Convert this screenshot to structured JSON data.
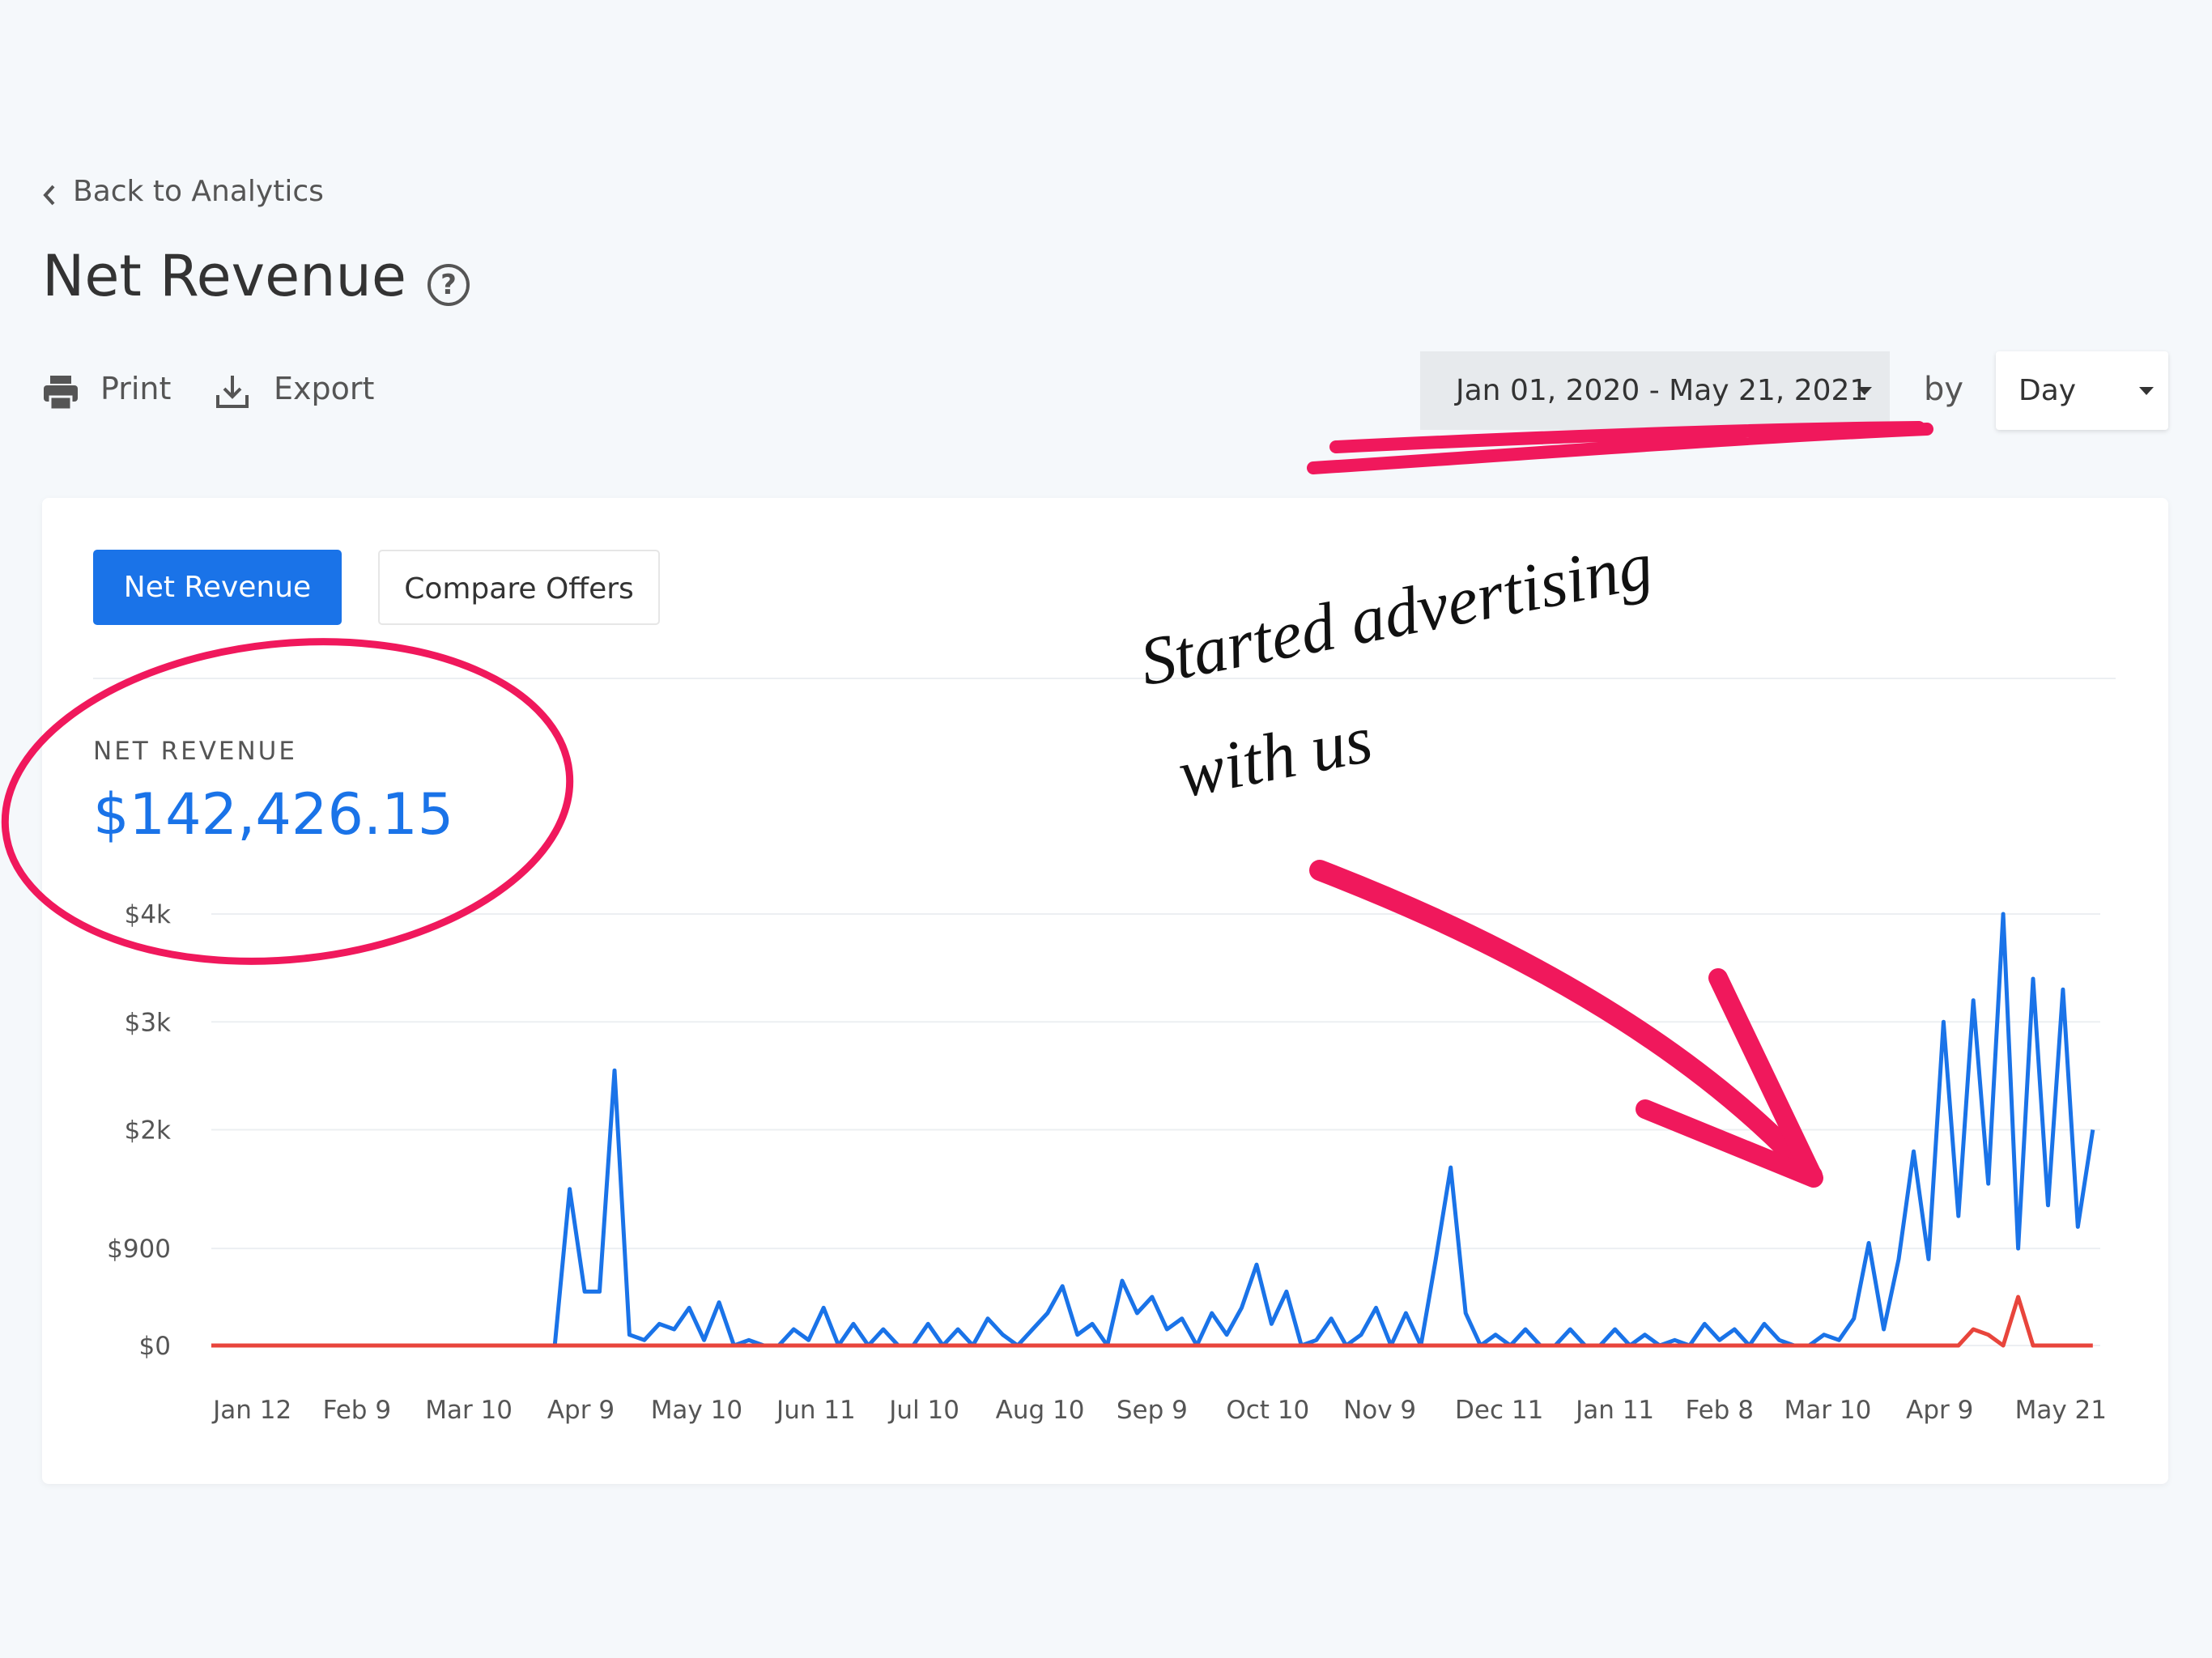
{
  "nav": {
    "back": "Back to Analytics"
  },
  "header": {
    "title": "Net Revenue",
    "help": "?"
  },
  "toolbar": {
    "print": "Print",
    "export": "Export",
    "date_range": "Jan 01, 2020 - May 21, 2021",
    "by": "by",
    "interval": "Day"
  },
  "tabs": [
    "Net Revenue",
    "Compare Offers"
  ],
  "summary": {
    "label": "NET REVENUE",
    "value": "$142,426.15"
  },
  "annotation": [
    "Started advertising",
    "with us"
  ],
  "chart_data": {
    "type": "line",
    "x": [
      0,
      4,
      8,
      12,
      16,
      20,
      24,
      28,
      32,
      36,
      40,
      44,
      48,
      52,
      56,
      60,
      64,
      68,
      72,
      76,
      80,
      84,
      88,
      92,
      96,
      100,
      104,
      108,
      112,
      116,
      120,
      124,
      128,
      132,
      136,
      140,
      144,
      148,
      152,
      156,
      160,
      164,
      168,
      172,
      176,
      180,
      184,
      188,
      192,
      196,
      200,
      204,
      208,
      212,
      216,
      220,
      224,
      228,
      232,
      236,
      240,
      244,
      248,
      252,
      256,
      260,
      264,
      268,
      272,
      276,
      280,
      284,
      288,
      292,
      296,
      300,
      304,
      308,
      312,
      316,
      320,
      324,
      328,
      332,
      336,
      340,
      344,
      348,
      352,
      356,
      360,
      364,
      368,
      372,
      376,
      380,
      384,
      388,
      392,
      396,
      400,
      404,
      408,
      412,
      416,
      420,
      424,
      428,
      432,
      436,
      440,
      444,
      448,
      452,
      456,
      460,
      464,
      468,
      472,
      476,
      480,
      484,
      488,
      492,
      496,
      500,
      504
    ],
    "xlim": [
      0,
      506
    ],
    "xticks": [
      {
        "value": 11,
        "label": "Jan 12"
      },
      {
        "value": 39,
        "label": "Feb 9"
      },
      {
        "value": 69,
        "label": "Mar 10"
      },
      {
        "value": 99,
        "label": "Apr 9"
      },
      {
        "value": 130,
        "label": "May 10"
      },
      {
        "value": 162,
        "label": "Jun 11"
      },
      {
        "value": 191,
        "label": "Jul 10"
      },
      {
        "value": 222,
        "label": "Aug 10"
      },
      {
        "value": 252,
        "label": "Sep 9"
      },
      {
        "value": 283,
        "label": "Oct 10"
      },
      {
        "value": 313,
        "label": "Nov 9"
      },
      {
        "value": 345,
        "label": "Dec 11"
      },
      {
        "value": 376,
        "label": "Jan 11"
      },
      {
        "value": 404,
        "label": "Feb 8"
      },
      {
        "value": 433,
        "label": "Mar 10"
      },
      {
        "value": 463,
        "label": "Apr 9"
      },
      {
        "value": 506,
        "label": "May 21"
      }
    ],
    "ylim": [
      0,
      4000
    ],
    "yticks": [
      {
        "value": 0,
        "label": "$0"
      },
      {
        "value": 900,
        "label": "$900"
      },
      {
        "value": 2000,
        "label": "$2k"
      },
      {
        "value": 3000,
        "label": "$3k"
      },
      {
        "value": 4000,
        "label": "$4k"
      }
    ],
    "grid": true,
    "series": [
      {
        "color": "#1a73e8",
        "values": [
          0,
          0,
          0,
          0,
          0,
          0,
          0,
          0,
          0,
          0,
          0,
          0,
          0,
          0,
          0,
          0,
          0,
          0,
          0,
          0,
          0,
          0,
          0,
          0,
          1450,
          500,
          500,
          2550,
          100,
          50,
          200,
          150,
          350,
          50,
          400,
          0,
          50,
          0,
          0,
          150,
          50,
          350,
          0,
          200,
          0,
          150,
          0,
          0,
          200,
          0,
          150,
          0,
          250,
          100,
          0,
          150,
          300,
          550,
          100,
          200,
          0,
          600,
          300,
          450,
          150,
          250,
          0,
          300,
          100,
          350,
          750,
          200,
          500,
          0,
          50,
          250,
          0,
          100,
          350,
          0,
          300,
          0,
          800,
          1650,
          300,
          0,
          100,
          0,
          150,
          0,
          0,
          150,
          0,
          0,
          150,
          0,
          100,
          0,
          50,
          0,
          200,
          50,
          150,
          0,
          200,
          50,
          0,
          0,
          100,
          50,
          250,
          950,
          150,
          800,
          1800,
          800,
          3000,
          1200,
          3200,
          1500,
          4000,
          900,
          3400,
          1300,
          3300,
          1100,
          2000
        ]
      },
      {
        "color": "#e8453c",
        "values": [
          0,
          0,
          0,
          0,
          0,
          0,
          0,
          0,
          0,
          0,
          0,
          0,
          0,
          0,
          0,
          0,
          0,
          0,
          0,
          0,
          0,
          0,
          0,
          0,
          0,
          0,
          0,
          0,
          0,
          0,
          0,
          0,
          0,
          0,
          0,
          0,
          0,
          0,
          0,
          0,
          0,
          0,
          0,
          0,
          0,
          0,
          0,
          0,
          0,
          0,
          0,
          0,
          0,
          0,
          0,
          0,
          0,
          0,
          0,
          0,
          0,
          0,
          0,
          0,
          0,
          0,
          0,
          0,
          0,
          0,
          0,
          0,
          0,
          0,
          0,
          0,
          0,
          0,
          0,
          0,
          0,
          0,
          0,
          0,
          0,
          0,
          0,
          0,
          0,
          0,
          0,
          0,
          0,
          0,
          0,
          0,
          0,
          0,
          0,
          0,
          0,
          0,
          0,
          0,
          0,
          0,
          0,
          0,
          0,
          0,
          0,
          0,
          0,
          0,
          0,
          0,
          0,
          0,
          150,
          100,
          0,
          450,
          0,
          0,
          0,
          0,
          0
        ]
      }
    ]
  }
}
